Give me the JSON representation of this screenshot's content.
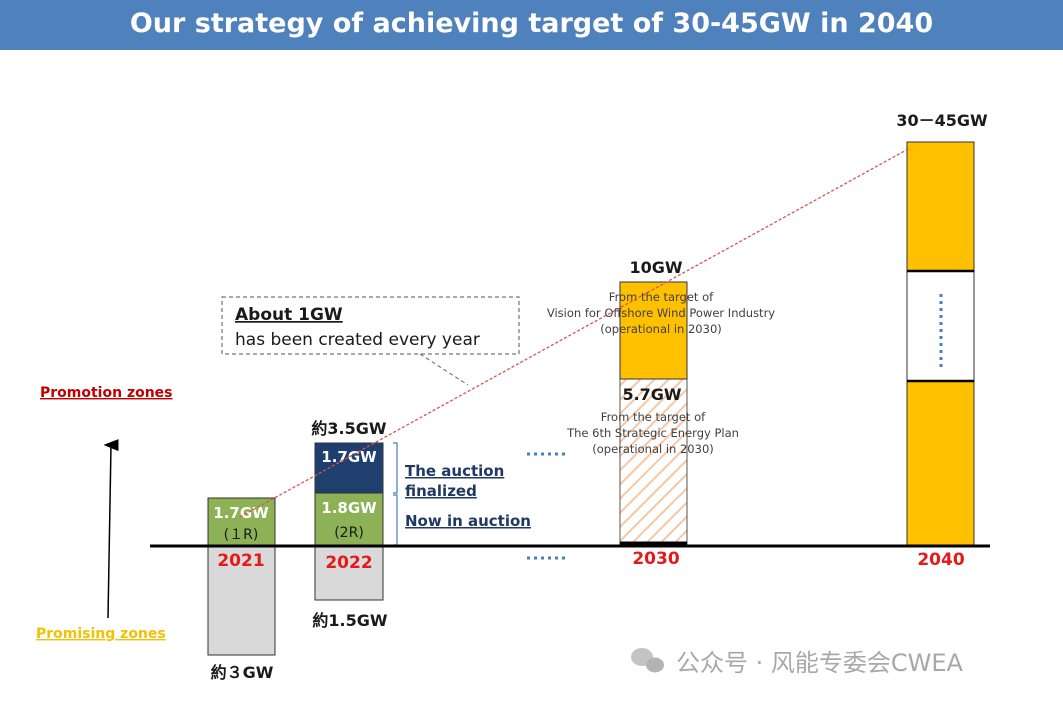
{
  "header": {
    "title": "Our strategy of achieving target of 30-45GW in 2040"
  },
  "chart_data": {
    "type": "bar",
    "title": "Our strategy of achieving target of 30-45GW in 2040",
    "side_labels": {
      "top": "Promotion zones",
      "bottom": "Promising zones"
    },
    "bars": [
      {
        "year": "2021",
        "above": [
          {
            "value_label": "1.7GW",
            "round_label": "(１R)"
          }
        ],
        "below_label": "約３GW"
      },
      {
        "year": "2022",
        "top_label": "約3.5GW",
        "above": [
          {
            "value_label": "1.8GW",
            "round_label": "(2R)"
          },
          {
            "value_label": "1.7GW"
          }
        ],
        "below_label": "約1.5GW"
      },
      {
        "year": "2030",
        "top_label": "10GW",
        "mid_label": "5.7GW",
        "notes": [
          {
            "lines": [
              "From the target of",
              "Vision for Offshore Wind Power Industry",
              "(operational in 2030)"
            ]
          },
          {
            "lines": [
              "From the target of",
              "The 6th Strategic Energy Plan",
              "(operational in 2030)"
            ]
          }
        ]
      },
      {
        "year": "2040",
        "top_label": "30－45GW"
      }
    ],
    "status_labels": {
      "finalized": [
        "The auction",
        "finalized"
      ],
      "in_auction": "Now in auction"
    },
    "callout": {
      "title": "About 1GW",
      "text": "has been created every year"
    },
    "colors": {
      "green": "#8db255",
      "navy": "#1f3f6e",
      "gold": "#ffc000",
      "gray": "#d9d9d9",
      "red": "#e31a1a",
      "promo": "#c00000",
      "promising": "#f2c200",
      "trend": "#d9534f",
      "dots": "#4a7ec0"
    }
  },
  "watermark": {
    "text": "公众号 · 风能专委会CWEA"
  }
}
